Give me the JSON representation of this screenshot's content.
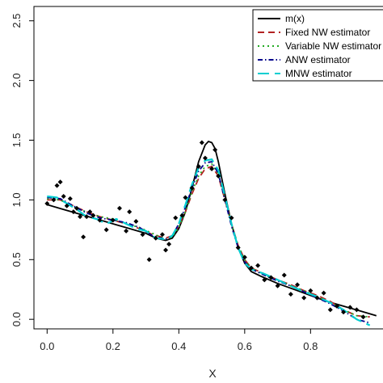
{
  "chart_data": {
    "type": "scatter",
    "title": "",
    "xlabel": "X",
    "ylabel": "",
    "xlim": [
      -0.04,
      1.02
    ],
    "ylim": [
      -0.08,
      2.62
    ],
    "x_ticks": [
      0.0,
      0.2,
      0.4,
      0.6,
      0.8
    ],
    "x_tick_labels": [
      "0.0",
      "0.2",
      "0.4",
      "0.6",
      "0.8"
    ],
    "y_ticks": [
      0.0,
      0.5,
      1.0,
      1.5,
      2.0,
      2.5
    ],
    "y_tick_labels": [
      "0.0",
      "0.5",
      "1.0",
      "1.5",
      "2.0",
      "2.5"
    ],
    "grid": false,
    "legend_position": "top-right",
    "points": {
      "color": "#000000",
      "x": [
        0.0,
        0.02,
        0.03,
        0.04,
        0.05,
        0.06,
        0.07,
        0.08,
        0.09,
        0.1,
        0.11,
        0.12,
        0.13,
        0.14,
        0.16,
        0.18,
        0.2,
        0.22,
        0.24,
        0.25,
        0.27,
        0.29,
        0.31,
        0.33,
        0.35,
        0.36,
        0.37,
        0.39,
        0.41,
        0.42,
        0.44,
        0.46,
        0.47,
        0.48,
        0.5,
        0.51,
        0.52,
        0.54,
        0.56,
        0.58,
        0.6,
        0.62,
        0.64,
        0.66,
        0.68,
        0.7,
        0.72,
        0.74,
        0.76,
        0.78,
        0.8,
        0.82,
        0.84,
        0.86,
        0.88,
        0.9,
        0.92,
        0.94,
        0.96
      ],
      "y": [
        0.97,
        1.0,
        1.12,
        1.15,
        1.03,
        0.95,
        1.01,
        0.9,
        0.93,
        0.86,
        0.69,
        0.86,
        0.9,
        0.87,
        0.83,
        0.75,
        0.83,
        0.93,
        0.74,
        0.9,
        0.82,
        0.71,
        0.5,
        0.68,
        0.71,
        0.58,
        0.63,
        0.85,
        0.87,
        1.02,
        1.1,
        1.28,
        1.48,
        1.35,
        1.26,
        1.42,
        1.2,
        1.0,
        0.85,
        0.6,
        0.52,
        0.43,
        0.45,
        0.33,
        0.35,
        0.28,
        0.37,
        0.21,
        0.29,
        0.18,
        0.24,
        0.18,
        0.22,
        0.08,
        0.11,
        0.06,
        0.1,
        0.08,
        0.02
      ]
    },
    "series": [
      {
        "name": "m(x)",
        "color": "#000000",
        "dash": "solid",
        "x": [
          0.0,
          0.05,
          0.1,
          0.15,
          0.2,
          0.25,
          0.3,
          0.33,
          0.36,
          0.38,
          0.4,
          0.42,
          0.44,
          0.46,
          0.48,
          0.49,
          0.5,
          0.51,
          0.52,
          0.54,
          0.56,
          0.58,
          0.6,
          0.62,
          0.65,
          0.7,
          0.75,
          0.8,
          0.85,
          0.9,
          0.95,
          1.0
        ],
        "y": [
          0.96,
          0.92,
          0.88,
          0.84,
          0.8,
          0.76,
          0.72,
          0.68,
          0.66,
          0.68,
          0.76,
          0.9,
          1.1,
          1.32,
          1.46,
          1.49,
          1.48,
          1.43,
          1.32,
          1.05,
          0.8,
          0.6,
          0.47,
          0.4,
          0.36,
          0.3,
          0.25,
          0.2,
          0.15,
          0.11,
          0.07,
          0.03
        ]
      },
      {
        "name": "Fixed NW estimator",
        "color": "#b22222",
        "dash": "8,5",
        "x": [
          0.0,
          0.04,
          0.08,
          0.12,
          0.16,
          0.2,
          0.24,
          0.28,
          0.32,
          0.36,
          0.38,
          0.4,
          0.42,
          0.44,
          0.46,
          0.48,
          0.5,
          0.52,
          0.54,
          0.56,
          0.58,
          0.6,
          0.62,
          0.66,
          0.7,
          0.74,
          0.78,
          0.82,
          0.86,
          0.9,
          0.94,
          0.98
        ],
        "y": [
          1.0,
          1.0,
          0.95,
          0.9,
          0.86,
          0.83,
          0.8,
          0.76,
          0.71,
          0.68,
          0.7,
          0.78,
          0.9,
          1.05,
          1.18,
          1.26,
          1.28,
          1.2,
          1.0,
          0.8,
          0.62,
          0.5,
          0.43,
          0.38,
          0.33,
          0.29,
          0.24,
          0.2,
          0.15,
          0.08,
          0.03,
          0.02
        ]
      },
      {
        "name": "Variable NW estimator",
        "color": "#22aa22",
        "dash": "2,4",
        "x": [
          0.0,
          0.04,
          0.08,
          0.12,
          0.16,
          0.2,
          0.24,
          0.28,
          0.32,
          0.36,
          0.38,
          0.4,
          0.42,
          0.44,
          0.46,
          0.48,
          0.5,
          0.52,
          0.54,
          0.56,
          0.58,
          0.6,
          0.62,
          0.66,
          0.7,
          0.74,
          0.78,
          0.82,
          0.86,
          0.9,
          0.94,
          0.98
        ],
        "y": [
          1.01,
          1.0,
          0.94,
          0.9,
          0.86,
          0.84,
          0.8,
          0.77,
          0.72,
          0.67,
          0.69,
          0.77,
          0.9,
          1.07,
          1.2,
          1.28,
          1.3,
          1.22,
          1.01,
          0.8,
          0.62,
          0.5,
          0.43,
          0.37,
          0.33,
          0.28,
          0.24,
          0.19,
          0.14,
          0.08,
          0.03,
          0.02
        ]
      },
      {
        "name": "ANW estimator",
        "color": "#00008b",
        "dash": "6,3,1.5,3",
        "x": [
          0.0,
          0.04,
          0.08,
          0.12,
          0.16,
          0.2,
          0.24,
          0.28,
          0.32,
          0.36,
          0.38,
          0.4,
          0.42,
          0.44,
          0.46,
          0.48,
          0.5,
          0.52,
          0.54,
          0.56,
          0.58,
          0.6,
          0.62,
          0.66,
          0.7,
          0.74,
          0.78,
          0.82,
          0.86,
          0.9,
          0.94,
          0.98
        ],
        "y": [
          1.02,
          1.01,
          0.95,
          0.89,
          0.85,
          0.83,
          0.81,
          0.77,
          0.7,
          0.67,
          0.7,
          0.8,
          0.94,
          1.1,
          1.24,
          1.31,
          1.32,
          1.22,
          1.0,
          0.78,
          0.6,
          0.48,
          0.42,
          0.37,
          0.32,
          0.28,
          0.23,
          0.18,
          0.13,
          0.07,
          0.0,
          -0.03
        ]
      },
      {
        "name": "MNW estimator",
        "color": "#00ced1",
        "dash": "14,7",
        "x": [
          0.0,
          0.03,
          0.06,
          0.09,
          0.12,
          0.15,
          0.18,
          0.21,
          0.24,
          0.27,
          0.3,
          0.33,
          0.36,
          0.38,
          0.4,
          0.42,
          0.44,
          0.46,
          0.48,
          0.5,
          0.52,
          0.54,
          0.56,
          0.58,
          0.6,
          0.62,
          0.66,
          0.7,
          0.74,
          0.78,
          0.82,
          0.86,
          0.9,
          0.94,
          0.98
        ],
        "y": [
          1.03,
          1.02,
          0.97,
          0.92,
          0.86,
          0.84,
          0.8,
          0.84,
          0.8,
          0.76,
          0.74,
          0.68,
          0.67,
          0.7,
          0.8,
          0.96,
          1.13,
          1.27,
          1.33,
          1.34,
          1.25,
          1.03,
          0.8,
          0.6,
          0.47,
          0.42,
          0.38,
          0.33,
          0.28,
          0.23,
          0.19,
          0.14,
          0.08,
          0.0,
          -0.05
        ]
      }
    ]
  }
}
